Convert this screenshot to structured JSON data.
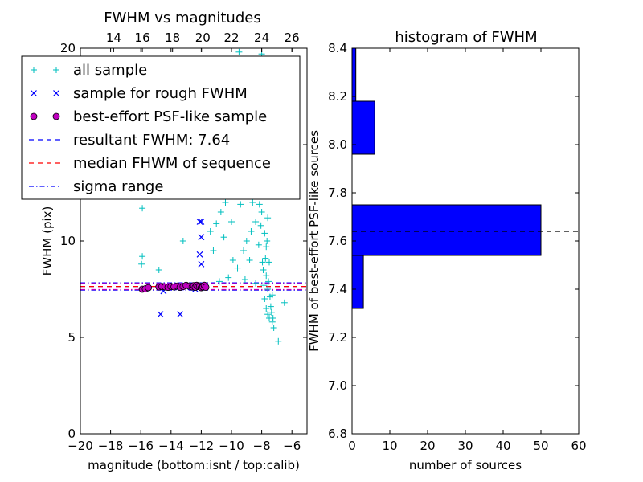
{
  "chart_data": [
    {
      "type": "scatter",
      "title": "FWHM vs magnitudes",
      "xlabel": "magnitude (bottom:isnt / top:calib)",
      "ylabel": "FWHM (pix)",
      "xlim": [
        -20,
        -5
      ],
      "ylim": [
        0,
        20
      ],
      "xticks": [
        "−20",
        "−18",
        "−16",
        "−14",
        "−12",
        "−10",
        "−8",
        "−6"
      ],
      "xtick_values": [
        -20,
        -18,
        -16,
        -14,
        -12,
        -10,
        -8,
        -6
      ],
      "yticks": [
        "0",
        "5",
        "10",
        "15",
        "20"
      ],
      "ytick_values": [
        0,
        5,
        10,
        15,
        20
      ],
      "top_axis": {
        "ticks": [
          "14",
          "16",
          "18",
          "20",
          "22",
          "24",
          "26"
        ],
        "tick_positions_data_x": [
          -17.8,
          -15.9,
          -13.9,
          -11.9,
          -10.0,
          -8.0,
          -6.0
        ]
      },
      "legend_position": "top-left",
      "legend": [
        {
          "label": "all sample",
          "marker": "+",
          "color": "#00bfbf"
        },
        {
          "label": "sample for rough FWHM",
          "marker": "x",
          "color": "#0000ff"
        },
        {
          "label": "best-effort PSF-like sample",
          "marker": "o",
          "color": "#bf00bf"
        },
        {
          "label": "resultant FWHM: 7.64",
          "line": "dashed",
          "color": "#0000ff"
        },
        {
          "label": "median FHWM of sequence",
          "line": "dashed",
          "color": "#ff0000"
        },
        {
          "label": "sigma range",
          "line": "dashdot",
          "color": "#0000ff"
        }
      ],
      "hlines": [
        {
          "name": "resultant FWHM",
          "y": 7.64,
          "color": "#0000ff",
          "style": "dashed"
        },
        {
          "name": "median FHWM of sequence",
          "y": 7.64,
          "color": "#ff0000",
          "style": "dashed"
        },
        {
          "name": "sigma range low",
          "y": 7.45,
          "color": "#0000ff",
          "style": "dashdot"
        },
        {
          "name": "sigma range high",
          "y": 7.83,
          "color": "#0000ff",
          "style": "dashdot"
        },
        {
          "name": "sigma range low 2",
          "y": 7.48,
          "color": "#bf00bf",
          "style": "dashdot"
        },
        {
          "name": "sigma range high 2",
          "y": 7.8,
          "color": "#bf00bf",
          "style": "dashdot"
        }
      ],
      "series": [
        {
          "name": "all sample",
          "color": "#00bfbf",
          "marker": "+",
          "points": [
            [
              -15.9,
              9.2
            ],
            [
              -15.95,
              8.8
            ],
            [
              -15.9,
              11.7
            ],
            [
              -14.8,
              8.5
            ],
            [
              -13.2,
              10.0
            ],
            [
              -11.4,
              10.5
            ],
            [
              -11.0,
              10.9
            ],
            [
              -10.7,
              11.5
            ],
            [
              -10.4,
              12.0
            ],
            [
              -9.9,
              9.0
            ],
            [
              -9.4,
              11.9
            ],
            [
              -9.1,
              8.0
            ],
            [
              -8.8,
              9.0
            ],
            [
              -8.6,
              12.0
            ],
            [
              -8.4,
              7.8
            ],
            [
              -8.2,
              9.8
            ],
            [
              -8.0,
              11.5
            ],
            [
              -7.9,
              8.5
            ],
            [
              -7.8,
              7.0
            ],
            [
              -7.7,
              6.5
            ],
            [
              -7.6,
              6.2
            ],
            [
              -7.5,
              6.0
            ],
            [
              -7.3,
              5.8
            ],
            [
              -7.2,
              5.5
            ],
            [
              -6.9,
              4.8
            ],
            [
              -6.5,
              6.8
            ],
            [
              -9.5,
              19.8
            ],
            [
              -8.0,
              19.7
            ],
            [
              -8.6,
              15.0
            ],
            [
              -7.9,
              14.5
            ],
            [
              -8.3,
              13.5
            ],
            [
              -8.1,
              12.5
            ],
            [
              -8.4,
              11.0
            ],
            [
              -8.7,
              10.5
            ],
            [
              -9.0,
              10.0
            ],
            [
              -9.2,
              9.5
            ],
            [
              -9.6,
              8.6
            ],
            [
              -10.2,
              8.1
            ],
            [
              -10.8,
              7.9
            ],
            [
              -11.7,
              7.7
            ],
            [
              -12.5,
              7.65
            ],
            [
              -13.5,
              7.62
            ],
            [
              -14.5,
              7.6
            ],
            [
              -15.5,
              7.55
            ],
            [
              -7.7,
              8.2
            ],
            [
              -7.6,
              7.5
            ],
            [
              -7.4,
              6.6
            ],
            [
              -7.3,
              7.2
            ],
            [
              -7.5,
              8.9
            ],
            [
              -7.7,
              9.7
            ],
            [
              -7.8,
              10.4
            ],
            [
              -7.6,
              11.2
            ],
            [
              -7.9,
              12.8
            ],
            [
              -8.2,
              13.9
            ],
            [
              -8.5,
              14.6
            ],
            [
              -8.9,
              13.0
            ],
            [
              -9.3,
              12.4
            ],
            [
              -10.0,
              11.0
            ],
            [
              -10.5,
              10.2
            ],
            [
              -11.2,
              9.5
            ],
            [
              -7.85,
              7.7
            ],
            [
              -7.95,
              8.9
            ],
            [
              -8.05,
              10.8
            ],
            [
              -7.75,
              9.1
            ],
            [
              -7.55,
              7.9
            ],
            [
              -7.45,
              7.1
            ],
            [
              -7.35,
              6.3
            ],
            [
              -7.25,
              6.0
            ],
            [
              -7.65,
              10.0
            ],
            [
              -8.15,
              11.9
            ],
            [
              -8.25,
              12.7
            ],
            [
              -8.45,
              13.3
            ]
          ]
        },
        {
          "name": "sample for rough FWHM",
          "color": "#0000ff",
          "marker": "x",
          "points": [
            [
              -14.7,
              6.2
            ],
            [
              -13.4,
              6.2
            ],
            [
              -12.1,
              11.0
            ],
            [
              -12.0,
              11.0
            ],
            [
              -12.0,
              10.2
            ],
            [
              -12.1,
              9.3
            ],
            [
              -12.0,
              8.8
            ],
            [
              -12.2,
              7.7
            ],
            [
              -14.5,
              7.4
            ],
            [
              -13.8,
              7.6
            ],
            [
              -13.0,
              7.6
            ],
            [
              -12.4,
              7.5
            ]
          ]
        },
        {
          "name": "best-effort PSF-like sample",
          "color": "#bf00bf",
          "marker": "o",
          "points": [
            [
              -15.9,
              7.5
            ],
            [
              -15.7,
              7.52
            ],
            [
              -15.5,
              7.58
            ],
            [
              -14.8,
              7.62
            ],
            [
              -14.6,
              7.64
            ],
            [
              -14.4,
              7.62
            ],
            [
              -14.2,
              7.6
            ],
            [
              -14.0,
              7.64
            ],
            [
              -13.8,
              7.62
            ],
            [
              -13.6,
              7.66
            ],
            [
              -13.4,
              7.6
            ],
            [
              -13.2,
              7.64
            ],
            [
              -13.0,
              7.7
            ],
            [
              -12.8,
              7.66
            ],
            [
              -12.6,
              7.62
            ],
            [
              -12.5,
              7.68
            ],
            [
              -12.4,
              7.6
            ],
            [
              -12.3,
              7.7
            ],
            [
              -12.2,
              7.64
            ],
            [
              -12.1,
              7.66
            ],
            [
              -12.0,
              7.58
            ],
            [
              -11.9,
              7.62
            ],
            [
              -11.8,
              7.7
            ],
            [
              -11.7,
              7.6
            ]
          ]
        }
      ]
    },
    {
      "type": "bar",
      "orientation": "horizontal",
      "title": "histogram of FWHM",
      "xlabel": "number of sources",
      "ylabel": "FWHM of best-effort PSF-like sources",
      "xlim": [
        0,
        60
      ],
      "ylim": [
        6.8,
        8.4
      ],
      "xticks": [
        "0",
        "10",
        "20",
        "30",
        "40",
        "50",
        "60"
      ],
      "xtick_values": [
        0,
        10,
        20,
        30,
        40,
        50,
        60
      ],
      "yticks": [
        "6.8",
        "7.0",
        "7.2",
        "7.4",
        "7.6",
        "7.8",
        "8.0",
        "8.2",
        "8.4"
      ],
      "ytick_values": [
        6.8,
        7.0,
        7.2,
        7.4,
        7.6,
        7.8,
        8.0,
        8.2,
        8.4
      ],
      "color": "#0000ff",
      "bins": [
        {
          "low": 7.32,
          "high": 7.54,
          "count": 3
        },
        {
          "low": 7.54,
          "high": 7.75,
          "count": 50
        },
        {
          "low": 7.75,
          "high": 7.96,
          "count": 0
        },
        {
          "low": 7.96,
          "high": 8.18,
          "count": 6
        },
        {
          "low": 8.18,
          "high": 8.4,
          "count": 1
        }
      ],
      "hline": {
        "y": 7.64,
        "color": "#000000",
        "style": "dashed"
      }
    }
  ]
}
